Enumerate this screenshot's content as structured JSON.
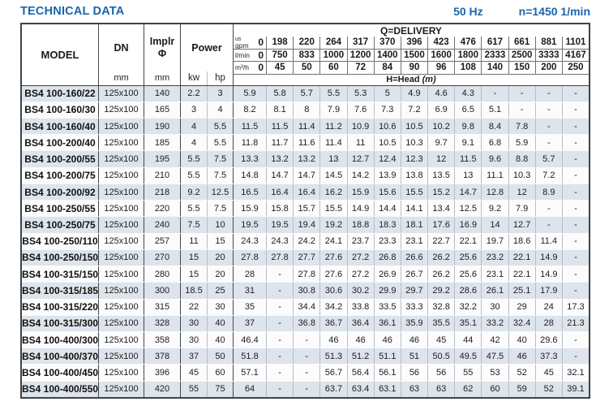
{
  "page": {
    "title": "TECHNICAL DATA",
    "frequency": "50 Hz",
    "speed": "n=1450 1/min"
  },
  "colors": {
    "accent_blue": "#1a65ad",
    "row_stripe": "#dde4eb",
    "border_dark": "#3f4345"
  },
  "table": {
    "headers": {
      "model": "MODEL",
      "dn": "DN",
      "implr_line1": "Implr",
      "implr_line2": "Φ",
      "power": "Power",
      "mm": "mm",
      "kw": "kw",
      "hp": "hp",
      "delivery": "Q=DELIVERY",
      "head": "H=Head",
      "head_unit": "(m)",
      "unit_rows": [
        {
          "unit_top": "us",
          "unit": "gpm",
          "zero": "0",
          "values": [
            "198",
            "220",
            "264",
            "317",
            "370",
            "396",
            "423",
            "476",
            "617",
            "661",
            "881",
            "1101"
          ]
        },
        {
          "unit": "l/min",
          "zero": "0",
          "values": [
            "750",
            "833",
            "1000",
            "1200",
            "1400",
            "1500",
            "1600",
            "1800",
            "2333",
            "2500",
            "3333",
            "4167"
          ]
        },
        {
          "unit": "m³/h",
          "zero": "0",
          "values": [
            "45",
            "50",
            "60",
            "72",
            "84",
            "90",
            "96",
            "108",
            "140",
            "150",
            "200",
            "250"
          ]
        }
      ]
    },
    "rows": [
      {
        "model": "BS4 100-160/22",
        "dn": "125x100",
        "implr": "140",
        "kw": "2.2",
        "hp": "3",
        "head": [
          "5.9",
          "5.8",
          "5.7",
          "5.5",
          "5.3",
          "5",
          "4.9",
          "4.6",
          "4.3",
          "-",
          "-",
          "-",
          "-"
        ]
      },
      {
        "model": "BS4 100-160/30",
        "dn": "125x100",
        "implr": "165",
        "kw": "3",
        "hp": "4",
        "head": [
          "8.2",
          "8.1",
          "8",
          "7.9",
          "7.6",
          "7.3",
          "7.2",
          "6.9",
          "6.5",
          "5.1",
          "-",
          "-",
          "-"
        ]
      },
      {
        "model": "BS4 100-160/40",
        "dn": "125x100",
        "implr": "190",
        "kw": "4",
        "hp": "5.5",
        "head": [
          "11.5",
          "11.5",
          "11.4",
          "11.2",
          "10.9",
          "10.6",
          "10.5",
          "10.2",
          "9.8",
          "8.4",
          "7.8",
          "-",
          "-"
        ]
      },
      {
        "model": "BS4 100-200/40",
        "dn": "125x100",
        "implr": "185",
        "kw": "4",
        "hp": "5.5",
        "head": [
          "11.8",
          "11.7",
          "11.6",
          "11.4",
          "11",
          "10.5",
          "10.3",
          "9.7",
          "9.1",
          "6.8",
          "5.9",
          "-",
          "-"
        ]
      },
      {
        "model": "BS4 100-200/55",
        "dn": "125x100",
        "implr": "195",
        "kw": "5.5",
        "hp": "7.5",
        "head": [
          "13.3",
          "13.2",
          "13.2",
          "13",
          "12.7",
          "12.4",
          "12.3",
          "12",
          "11.5",
          "9.6",
          "8.8",
          "5.7",
          "-"
        ]
      },
      {
        "model": "BS4 100-200/75",
        "dn": "125x100",
        "implr": "210",
        "kw": "5.5",
        "hp": "7.5",
        "head": [
          "14.8",
          "14.7",
          "14.7",
          "14.5",
          "14.2",
          "13.9",
          "13.8",
          "13.5",
          "13",
          "11.1",
          "10.3",
          "7.2",
          "-"
        ]
      },
      {
        "model": "BS4 100-200/92",
        "dn": "125x100",
        "implr": "218",
        "kw": "9.2",
        "hp": "12.5",
        "head": [
          "16.5",
          "16.4",
          "16.4",
          "16.2",
          "15.9",
          "15.6",
          "15.5",
          "15.2",
          "14.7",
          "12.8",
          "12",
          "8.9",
          "-"
        ]
      },
      {
        "model": "BS4 100-250/55",
        "dn": "125x100",
        "implr": "220",
        "kw": "5.5",
        "hp": "7.5",
        "head": [
          "15.9",
          "15.8",
          "15.7",
          "15.5",
          "14.9",
          "14.4",
          "14.1",
          "13.4",
          "12.5",
          "9.2",
          "7.9",
          "-",
          "-"
        ]
      },
      {
        "model": "BS4 100-250/75",
        "dn": "125x100",
        "implr": "240",
        "kw": "7.5",
        "hp": "10",
        "head": [
          "19.5",
          "19.5",
          "19.4",
          "19.2",
          "18.8",
          "18.3",
          "18.1",
          "17.6",
          "16.9",
          "14",
          "12.7",
          "-",
          "-"
        ]
      },
      {
        "model": "BS4 100-250/110",
        "dn": "125x100",
        "implr": "257",
        "kw": "11",
        "hp": "15",
        "head": [
          "24.3",
          "24.3",
          "24.2",
          "24.1",
          "23.7",
          "23.3",
          "23.1",
          "22.7",
          "22.1",
          "19.7",
          "18.6",
          "11.4",
          "-"
        ]
      },
      {
        "model": "BS4 100-250/150",
        "dn": "125x100",
        "implr": "270",
        "kw": "15",
        "hp": "20",
        "head": [
          "27.8",
          "27.8",
          "27.7",
          "27.6",
          "27.2",
          "26.8",
          "26.6",
          "26.2",
          "25.6",
          "23.2",
          "22.1",
          "14.9",
          "-"
        ]
      },
      {
        "model": "BS4 100-315/150",
        "dn": "125x100",
        "implr": "280",
        "kw": "15",
        "hp": "20",
        "head": [
          "28",
          "-",
          "27.8",
          "27.6",
          "27.2",
          "26.9",
          "26.7",
          "26.2",
          "25.6",
          "23.1",
          "22.1",
          "14.9",
          "-"
        ]
      },
      {
        "model": "BS4 100-315/185",
        "dn": "125x100",
        "implr": "300",
        "kw": "18.5",
        "hp": "25",
        "head": [
          "31",
          "-",
          "30.8",
          "30.6",
          "30.2",
          "29.9",
          "29.7",
          "29.2",
          "28.6",
          "26.1",
          "25.1",
          "17.9",
          "-"
        ]
      },
      {
        "model": "BS4 100-315/220",
        "dn": "125x100",
        "implr": "315",
        "kw": "22",
        "hp": "30",
        "head": [
          "35",
          "-",
          "34.4",
          "34.2",
          "33.8",
          "33.5",
          "33.3",
          "32.8",
          "32.2",
          "30",
          "29",
          "24",
          "17.3"
        ]
      },
      {
        "model": "BS4 100-315/300",
        "dn": "125x100",
        "implr": "328",
        "kw": "30",
        "hp": "40",
        "head": [
          "37",
          "-",
          "36.8",
          "36.7",
          "36.4",
          "36.1",
          "35.9",
          "35.5",
          "35.1",
          "33.2",
          "32.4",
          "28",
          "21.3"
        ]
      },
      {
        "model": "BS4 100-400/300",
        "dn": "125x100",
        "implr": "358",
        "kw": "30",
        "hp": "40",
        "head": [
          "46.4",
          "-",
          "-",
          "46",
          "46",
          "46",
          "46",
          "45",
          "44",
          "42",
          "40",
          "29.6",
          "-"
        ]
      },
      {
        "model": "BS4 100-400/370",
        "dn": "125x100",
        "implr": "378",
        "kw": "37",
        "hp": "50",
        "head": [
          "51.8",
          "-",
          "-",
          "51.3",
          "51.2",
          "51.1",
          "51",
          "50.5",
          "49.5",
          "47.5",
          "46",
          "37.3",
          "-"
        ]
      },
      {
        "model": "BS4 100-400/450",
        "dn": "125x100",
        "implr": "396",
        "kw": "45",
        "hp": "60",
        "head": [
          "57.1",
          "-",
          "-",
          "56.7",
          "56.4",
          "56.1",
          "56",
          "56",
          "55",
          "53",
          "52",
          "45",
          "32.1"
        ]
      },
      {
        "model": "BS4 100-400/550",
        "dn": "125x100",
        "implr": "420",
        "kw": "55",
        "hp": "75",
        "head": [
          "64",
          "-",
          "-",
          "63.7",
          "63.4",
          "63.1",
          "63",
          "63",
          "62",
          "60",
          "59",
          "52",
          "39.1"
        ]
      }
    ]
  }
}
